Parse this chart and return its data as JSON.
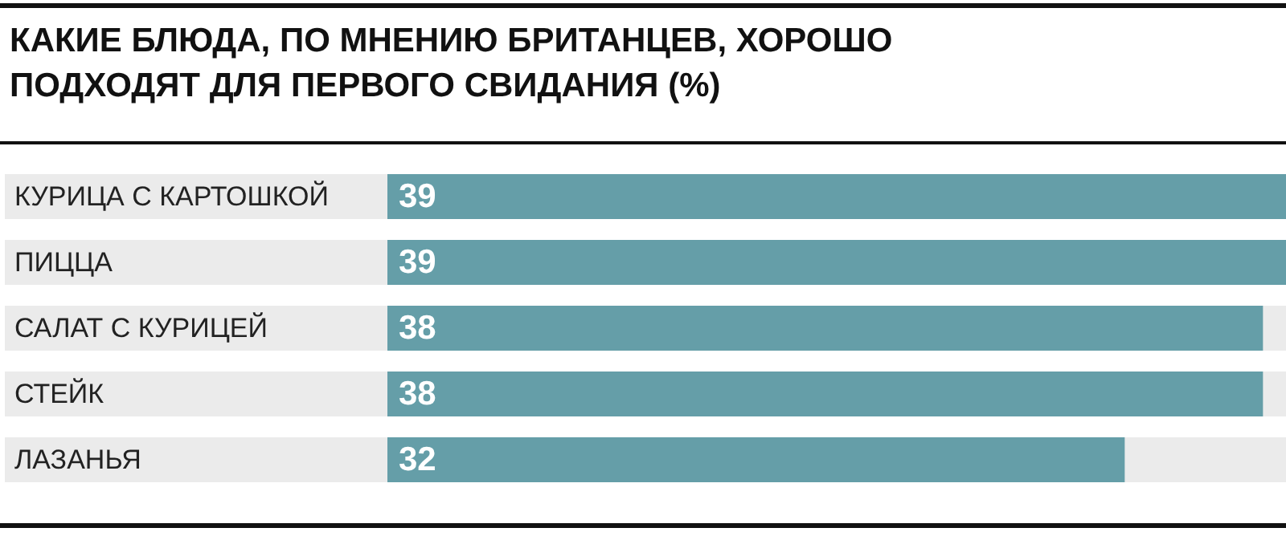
{
  "chart_data": {
    "type": "bar",
    "orientation": "horizontal",
    "title": "КАКИЕ БЛЮДА, ПО МНЕНИЮ БРИТАНЦЕВ, ХОРОШО ПОДХОДЯТ ДЛЯ ПЕРВОГО СВИДАНИЯ (%)",
    "categories": [
      "КУРИЦА С КАРТОШКОЙ",
      "ПИЦЦА",
      "САЛАТ С КУРИЦЕЙ",
      "СТЕЙК",
      "ЛАЗАНЬЯ"
    ],
    "values": [
      39,
      39,
      38,
      38,
      32
    ],
    "color": "#659ea8",
    "xlim": [
      0,
      39
    ],
    "data_labels": true,
    "tick_labels": "y"
  }
}
